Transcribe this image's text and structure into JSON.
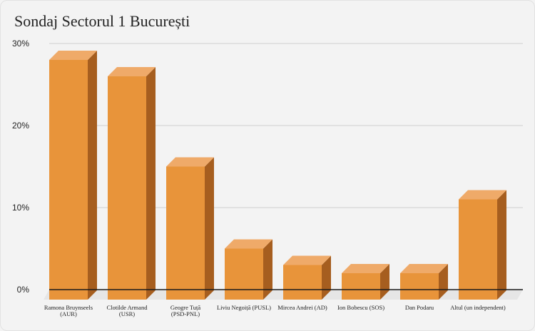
{
  "title": "Sondaj Sectorul 1 București",
  "colors": {
    "bar_front": "#e8943a",
    "bar_top": "#efaa69",
    "bar_side": "#a65e1f",
    "floor": "#e6e6e6",
    "grid": "#cfcfcf",
    "axis": "#1a1a1a",
    "background": "#f3f3f3"
  },
  "chart_data": {
    "type": "bar",
    "style": "3d",
    "title": "Sondaj Sectorul 1 București",
    "xlabel": "",
    "ylabel": "",
    "ylim": [
      0,
      30
    ],
    "yticks": [
      "0%",
      "10%",
      "20%",
      "30%"
    ],
    "yticks_values": [
      0,
      10,
      20,
      30
    ],
    "grid": true,
    "legend": "none",
    "categories": [
      [
        "Ramona Bruynseels",
        "(AUR)"
      ],
      [
        "Clotilde Armand",
        "(USR)"
      ],
      [
        "Geogre Tuță",
        "(PSD-PNL)"
      ],
      [
        "Liviu Negoiță (PUSL)"
      ],
      [
        "Mircea Andrei (AD)"
      ],
      [
        "Ion Bobescu (SOS)"
      ],
      [
        "Dan Podaru"
      ],
      [
        "Altul (un independent)"
      ]
    ],
    "values": [
      28,
      26,
      15,
      5,
      3,
      2,
      2,
      11
    ]
  }
}
